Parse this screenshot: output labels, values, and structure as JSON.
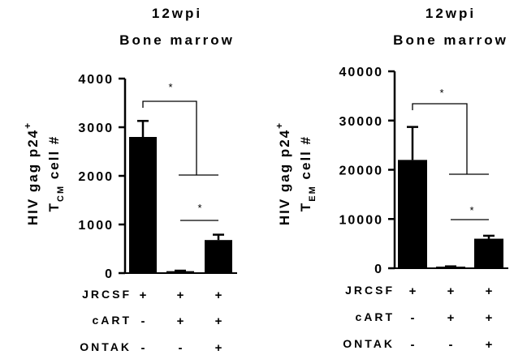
{
  "chart_data": [
    {
      "type": "bar",
      "title": "12wpi",
      "subtitle": "Bone marrow",
      "ylabel": {
        "line1": "HIV gag p24",
        "line1_sup": "+",
        "line2_main": "T",
        "line2_sub": "CM",
        "line2_rest": " cell #"
      },
      "categories": [
        "JRCSF",
        "JRCSF + cART",
        "JRCSF + cART + ONTAK"
      ],
      "values": [
        2800,
        40,
        680
      ],
      "errors": [
        330,
        10,
        110
      ],
      "ylim": [
        0,
        4000
      ],
      "yticks": [
        0,
        1000,
        2000,
        3000,
        4000
      ],
      "ytick_labels": [
        "0",
        "1000",
        "2000",
        "3000",
        "4000"
      ],
      "significance": [
        {
          "groups": [
            0,
            1
          ],
          "label": "*"
        },
        {
          "groups": [
            1,
            2
          ],
          "label": "*"
        }
      ]
    },
    {
      "type": "bar",
      "title": "12wpi",
      "subtitle": "Bone marrow",
      "ylabel": {
        "line1": "HIV gag p24",
        "line1_sup": "+",
        "line2_main": "T",
        "line2_sub": "EM",
        "line2_rest": " cell #"
      },
      "categories": [
        "JRCSF",
        "JRCSF + cART",
        "JRCSF + cART + ONTAK"
      ],
      "values": [
        22000,
        300,
        6000
      ],
      "errors": [
        6700,
        80,
        600
      ],
      "ylim": [
        0,
        40000
      ],
      "yticks": [
        0,
        10000,
        20000,
        30000,
        40000
      ],
      "ytick_labels": [
        "0",
        "10000",
        "20000",
        "30000",
        "40000"
      ],
      "significance": [
        {
          "groups": [
            0,
            1
          ],
          "label": "*"
        },
        {
          "groups": [
            1,
            2
          ],
          "label": "*"
        }
      ]
    }
  ],
  "conditions": {
    "rows": [
      {
        "label": "JRCSF",
        "values": [
          "+",
          "+",
          "+"
        ]
      },
      {
        "label": "cART",
        "values": [
          "-",
          "+",
          "+"
        ]
      },
      {
        "label": "ONTAK",
        "values": [
          "-",
          "-",
          "+"
        ]
      }
    ]
  },
  "colors": {
    "bar": "#000000",
    "axis": "#000000",
    "background": "#ffffff"
  }
}
